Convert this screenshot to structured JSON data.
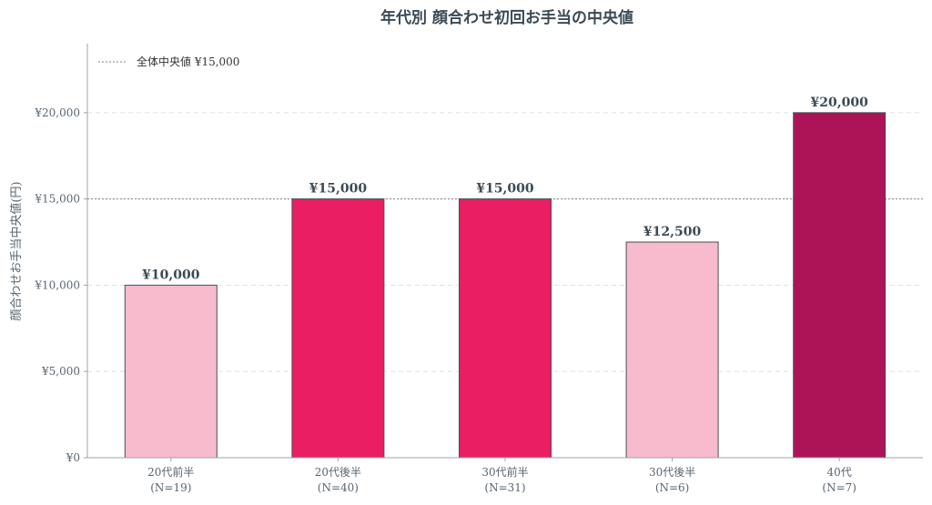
{
  "chart_data": {
    "type": "bar",
    "title": "年代別 顔合わせ初回お手当の中央値",
    "ylabel": "顔合わせお手当中央値(円)",
    "xlabel": "",
    "categories": [
      "20代前半",
      "20代後半",
      "30代前半",
      "30代後半",
      "40代"
    ],
    "category_sublabels": [
      "(N=19)",
      "(N=40)",
      "(N=31)",
      "(N=6)",
      "(N=7)"
    ],
    "values": [
      10000,
      15000,
      15000,
      12500,
      20000
    ],
    "value_labels": [
      "¥10,000",
      "¥15,000",
      "¥15,000",
      "¥12,500",
      "¥20,000"
    ],
    "bar_colors": [
      "#f7bbcd",
      "#e91e63",
      "#e91e63",
      "#f7bbcd",
      "#ad1457"
    ],
    "ylim": [
      0,
      24000
    ],
    "yticks": [
      0,
      5000,
      10000,
      15000,
      20000
    ],
    "ytick_labels": [
      "¥0",
      "¥5,000",
      "¥10,000",
      "¥15,000",
      "¥20,000"
    ],
    "reference_line": {
      "value": 15000,
      "label": "全体中央値 ¥15,000",
      "color": "#999999"
    },
    "grid": true,
    "legend_position": "top-left"
  }
}
